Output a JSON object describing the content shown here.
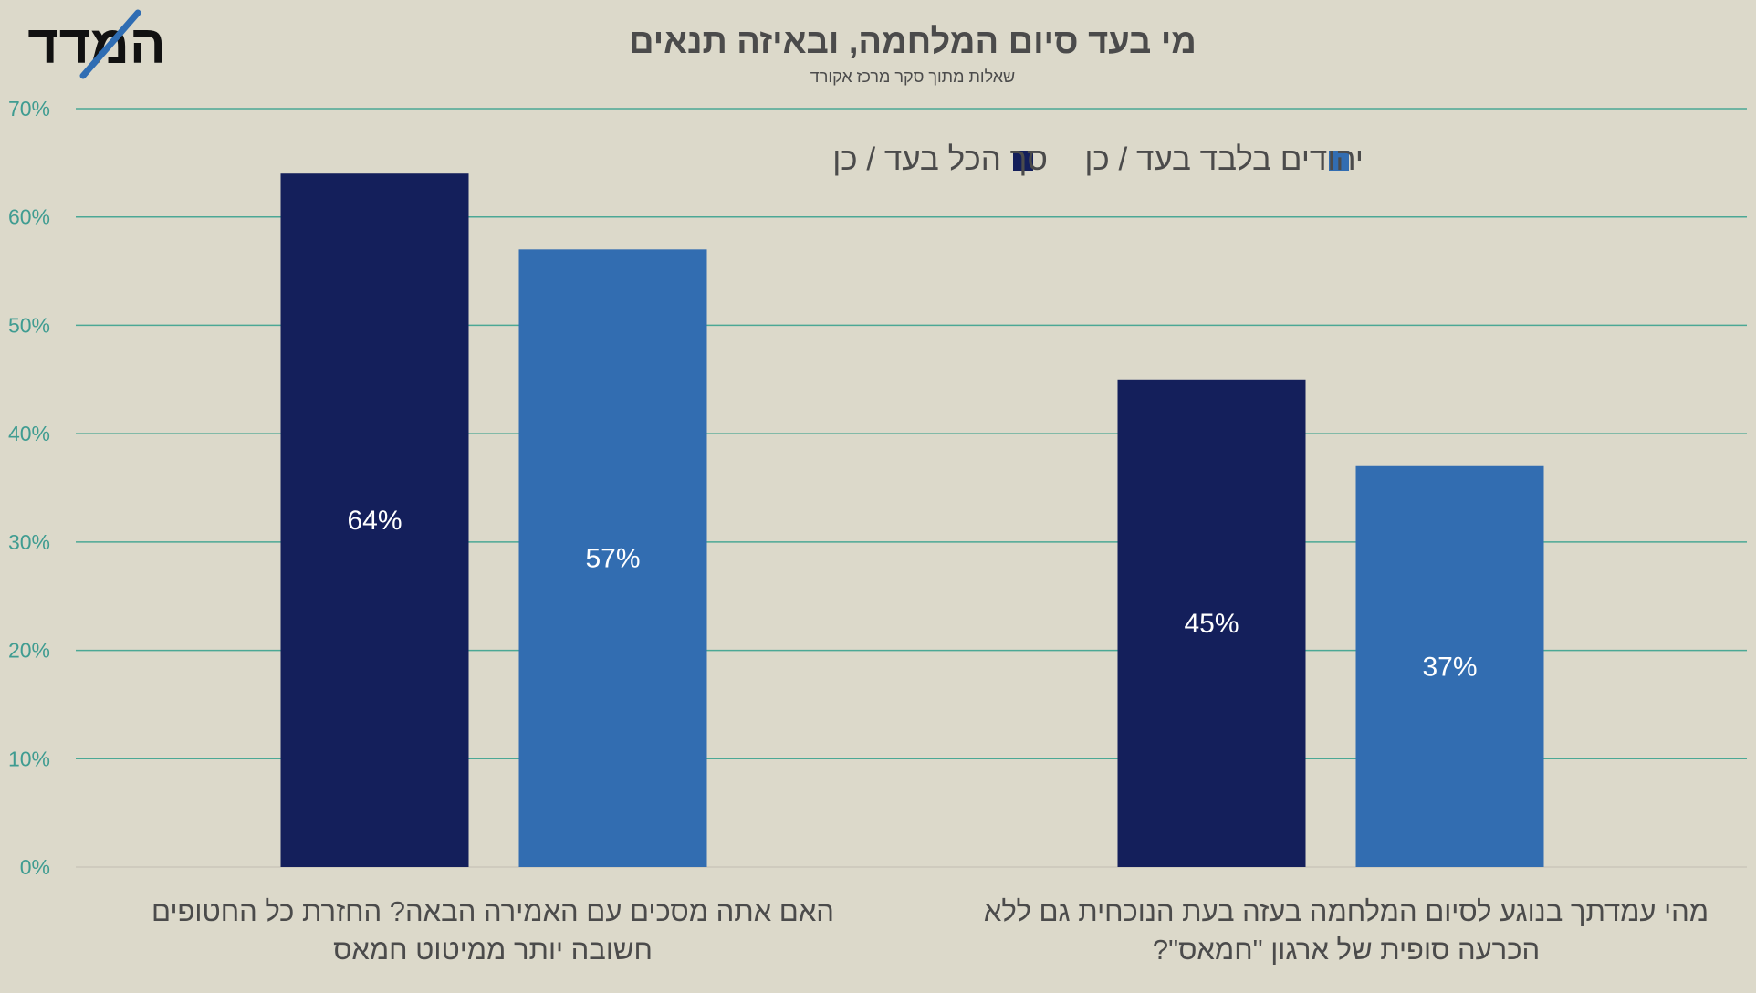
{
  "logo": {
    "text": "המדד",
    "accent_color": "#2f6db3",
    "text_color": "#111111"
  },
  "chart_data": {
    "type": "bar",
    "title": "מי בעד סיום המלחמה, ובאיזה תנאים",
    "subtitle": "שאלות מתוך סקר מרכז אקורד",
    "ylim": [
      0,
      70
    ],
    "y_ticks": [
      {
        "value": 0,
        "label": "0%"
      },
      {
        "value": 10,
        "label": "10%"
      },
      {
        "value": 20,
        "label": "20%"
      },
      {
        "value": 30,
        "label": "30%"
      },
      {
        "value": 40,
        "label": "40%"
      },
      {
        "value": 50,
        "label": "50%"
      },
      {
        "value": 60,
        "label": "60%"
      },
      {
        "value": 70,
        "label": "70%"
      }
    ],
    "grid": true,
    "legend_position": "top-right",
    "categories": [
      {
        "label_lines": [
          "מהי עמדתך בנוגע לסיום המלחמה בעזה בעת הנוכחית גם ללא",
          "הכרעה סופית של ארגון \"חמאס\"?"
        ]
      },
      {
        "label_lines": [
          "האם אתה מסכים עם האמירה הבאה? החזרת כל החטופים",
          "חשובה יותר ממיטוט חמאס"
        ]
      }
    ],
    "series": [
      {
        "name": "סך הכל בעד / כן",
        "color": "#141f5b",
        "values": [
          45,
          64
        ],
        "labels": [
          "45%",
          "64%"
        ]
      },
      {
        "name": "יהודים בלבד בעד / כן",
        "color": "#326db1",
        "values": [
          37,
          57
        ],
        "labels": [
          "37%",
          "57%"
        ]
      }
    ]
  },
  "colors": {
    "background": "#dcd9ca",
    "grid": "#4ba895",
    "axis_tick_text": "#3f9c91",
    "title_text": "#4b4b4b",
    "category_text": "#4b4b4b",
    "bar_label_text": "#ffffff"
  }
}
